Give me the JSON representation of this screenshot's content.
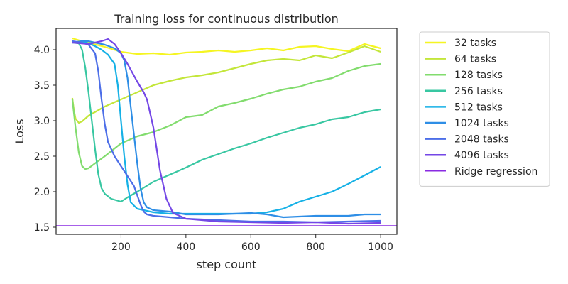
{
  "chart_data": {
    "type": "line",
    "title": "Training loss for continuous distribution",
    "xlabel": "step count",
    "ylabel": "Loss",
    "xlim": [
      0,
      1050
    ],
    "ylim": [
      1.4,
      4.3
    ],
    "xticks": [
      200,
      400,
      600,
      800,
      1000
    ],
    "yticks": [
      1.5,
      2.0,
      2.5,
      3.0,
      3.5,
      4.0
    ],
    "xtick_labels": [
      "200",
      "400",
      "600",
      "800",
      "1000"
    ],
    "ytick_labels": [
      "1.5",
      "2.0",
      "2.5",
      "3.0",
      "3.5",
      "4.0"
    ],
    "grid": false,
    "legend_position": "outside-right",
    "series": [
      {
        "name": "32 tasks",
        "color": "#f5f522",
        "x": [
          50,
          80,
          100,
          150,
          200,
          250,
          300,
          350,
          400,
          450,
          500,
          550,
          600,
          650,
          700,
          750,
          800,
          850,
          900,
          950,
          1000
        ],
        "y": [
          4.16,
          4.12,
          4.1,
          4.04,
          3.97,
          3.94,
          3.95,
          3.93,
          3.96,
          3.97,
          3.99,
          3.97,
          3.99,
          4.02,
          3.99,
          4.04,
          4.05,
          4.01,
          3.98,
          4.08,
          4.02
        ]
      },
      {
        "name": "64 tasks",
        "color": "#c3e63a",
        "x": [
          50,
          55,
          60,
          70,
          80,
          100,
          150,
          200,
          250,
          300,
          350,
          400,
          450,
          500,
          550,
          600,
          650,
          700,
          750,
          800,
          850,
          900,
          950,
          975,
          1000
        ],
        "y": [
          3.32,
          3.15,
          3.03,
          2.97,
          2.99,
          3.07,
          3.2,
          3.3,
          3.4,
          3.5,
          3.56,
          3.61,
          3.64,
          3.68,
          3.74,
          3.8,
          3.85,
          3.87,
          3.85,
          3.92,
          3.88,
          3.96,
          4.05,
          4.01,
          3.97
        ]
      },
      {
        "name": "128 tasks",
        "color": "#82dc6e",
        "x": [
          50,
          60,
          70,
          80,
          90,
          100,
          120,
          150,
          200,
          250,
          300,
          350,
          400,
          450,
          500,
          550,
          600,
          650,
          700,
          750,
          800,
          850,
          900,
          950,
          1000
        ],
        "y": [
          3.3,
          2.9,
          2.55,
          2.36,
          2.32,
          2.33,
          2.4,
          2.5,
          2.68,
          2.78,
          2.84,
          2.93,
          3.05,
          3.08,
          3.2,
          3.25,
          3.31,
          3.38,
          3.44,
          3.48,
          3.55,
          3.6,
          3.7,
          3.77,
          3.8
        ]
      },
      {
        "name": "256 tasks",
        "color": "#38c7a2",
        "x": [
          50,
          70,
          80,
          90,
          100,
          110,
          120,
          130,
          140,
          150,
          170,
          200,
          220,
          250,
          300,
          350,
          400,
          450,
          500,
          550,
          600,
          650,
          700,
          750,
          800,
          850,
          900,
          950,
          1000
        ],
        "y": [
          4.1,
          4.09,
          4.0,
          3.75,
          3.4,
          3.0,
          2.6,
          2.25,
          2.05,
          1.97,
          1.9,
          1.86,
          1.92,
          2.0,
          2.14,
          2.24,
          2.34,
          2.45,
          2.53,
          2.61,
          2.68,
          2.76,
          2.83,
          2.9,
          2.95,
          3.02,
          3.05,
          3.12,
          3.16
        ]
      },
      {
        "name": "512 tasks",
        "color": "#16b1e6",
        "x": [
          50,
          80,
          100,
          120,
          140,
          160,
          180,
          190,
          200,
          210,
          220,
          230,
          250,
          280,
          300,
          350,
          400,
          450,
          500,
          550,
          600,
          650,
          700,
          750,
          800,
          850,
          900,
          950,
          1000
        ],
        "y": [
          4.1,
          4.12,
          4.09,
          4.05,
          4.0,
          3.93,
          3.8,
          3.5,
          3.0,
          2.5,
          2.1,
          1.85,
          1.76,
          1.73,
          1.71,
          1.69,
          1.69,
          1.69,
          1.69,
          1.69,
          1.69,
          1.71,
          1.76,
          1.86,
          1.93,
          2.0,
          2.11,
          2.23,
          2.35
        ]
      },
      {
        "name": "1024 tasks",
        "color": "#2e8ee6",
        "x": [
          50,
          80,
          100,
          150,
          180,
          200,
          210,
          220,
          230,
          240,
          250,
          260,
          270,
          280,
          300,
          350,
          400,
          450,
          500,
          550,
          600,
          650,
          700,
          750,
          800,
          850,
          900,
          950,
          1000
        ],
        "y": [
          4.1,
          4.12,
          4.12,
          4.07,
          4.02,
          3.95,
          3.85,
          3.6,
          3.2,
          2.8,
          2.4,
          2.05,
          1.85,
          1.78,
          1.74,
          1.72,
          1.68,
          1.68,
          1.68,
          1.69,
          1.7,
          1.68,
          1.64,
          1.65,
          1.66,
          1.66,
          1.66,
          1.68,
          1.68
        ]
      },
      {
        "name": "2048 tasks",
        "color": "#4c6ee8",
        "x": [
          50,
          80,
          100,
          120,
          130,
          140,
          150,
          160,
          180,
          200,
          220,
          240,
          250,
          260,
          270,
          280,
          300,
          350,
          400,
          500,
          600,
          700,
          800,
          900,
          1000
        ],
        "y": [
          4.12,
          4.1,
          4.07,
          3.95,
          3.7,
          3.3,
          2.95,
          2.7,
          2.5,
          2.36,
          2.22,
          2.08,
          1.95,
          1.82,
          1.72,
          1.68,
          1.66,
          1.64,
          1.62,
          1.6,
          1.58,
          1.58,
          1.57,
          1.58,
          1.59
        ]
      },
      {
        "name": "4096 tasks",
        "color": "#7447e6",
        "x": [
          50,
          100,
          140,
          160,
          180,
          200,
          220,
          250,
          270,
          280,
          290,
          300,
          310,
          320,
          340,
          360,
          400,
          500,
          600,
          700,
          800,
          900,
          1000
        ],
        "y": [
          4.1,
          4.08,
          4.12,
          4.15,
          4.08,
          3.95,
          3.8,
          3.55,
          3.4,
          3.3,
          3.1,
          2.9,
          2.6,
          2.3,
          1.9,
          1.7,
          1.62,
          1.58,
          1.57,
          1.56,
          1.57,
          1.55,
          1.56
        ]
      },
      {
        "name": "Ridge regression",
        "color": "#8a2be2",
        "type": "hline",
        "y": 1.52
      }
    ]
  }
}
